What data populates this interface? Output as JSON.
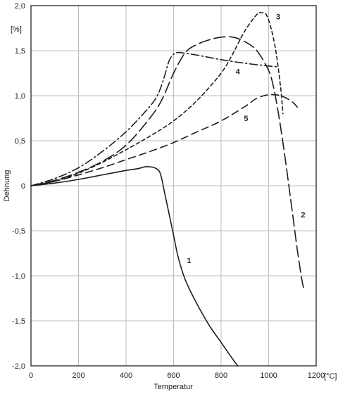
{
  "chart_data": {
    "type": "line",
    "xlabel": "Temperatur",
    "ylabel": "Dehnung",
    "x_unit": "[°C]",
    "y_unit": "[%]",
    "xlim": [
      0,
      1200
    ],
    "ylim": [
      -2.0,
      2.0
    ],
    "x_ticks": [
      0,
      200,
      400,
      600,
      800,
      1000,
      1200
    ],
    "x_tick_labels": [
      "0",
      "200",
      "400",
      "600",
      "800",
      "1000",
      "1200"
    ],
    "y_ticks": [
      2.0,
      1.5,
      1.0,
      0.5,
      0,
      -0.5,
      -1.0,
      -1.5,
      -2.0
    ],
    "y_tick_labels": [
      "2,0",
      "1,5",
      "1,0",
      "0,5",
      "0",
      "-0,5",
      "-1,0",
      "-1,5",
      "-2,0"
    ],
    "grid": true,
    "legend": "labels on curves",
    "series": [
      {
        "label": "1",
        "line_style": "solid",
        "label_at": [
          665,
          -0.83
        ],
        "x": [
          0,
          100,
          200,
          300,
          400,
          450,
          480,
          500,
          520,
          540,
          550,
          560,
          580,
          600,
          620,
          650,
          700,
          750,
          800,
          850,
          870
        ],
        "y": [
          0,
          0.03,
          0.07,
          0.12,
          0.17,
          0.19,
          0.21,
          0.21,
          0.2,
          0.16,
          0.08,
          -0.05,
          -0.3,
          -0.55,
          -0.8,
          -1.05,
          -1.32,
          -1.55,
          -1.74,
          -1.93,
          -2.0
        ]
      },
      {
        "label": "2",
        "line_style": "long-dash",
        "label_at": [
          1145,
          -0.32
        ],
        "x": [
          0,
          100,
          200,
          300,
          400,
          500,
          550,
          600,
          650,
          700,
          750,
          800,
          850,
          900,
          950,
          1000,
          1020,
          1040,
          1060,
          1080,
          1100,
          1120,
          1140,
          1150
        ],
        "y": [
          0,
          0.06,
          0.15,
          0.27,
          0.45,
          0.75,
          0.95,
          1.25,
          1.48,
          1.57,
          1.62,
          1.65,
          1.65,
          1.6,
          1.5,
          1.28,
          1.1,
          0.82,
          0.48,
          0.1,
          -0.3,
          -0.7,
          -1.05,
          -1.15
        ]
      },
      {
        "label": "3",
        "line_style": "short-dash",
        "label_at": [
          1040,
          1.88
        ],
        "x": [
          0,
          100,
          200,
          300,
          400,
          500,
          600,
          700,
          800,
          850,
          900,
          950,
          970,
          990,
          1010,
          1030,
          1050,
          1060
        ],
        "y": [
          0,
          0.05,
          0.14,
          0.26,
          0.4,
          0.55,
          0.72,
          0.95,
          1.25,
          1.47,
          1.72,
          1.9,
          1.92,
          1.9,
          1.75,
          1.5,
          1.1,
          0.8
        ]
      },
      {
        "label": "4",
        "line_style": "dash-dot",
        "label_at": [
          870,
          1.27
        ],
        "x": [
          0,
          100,
          200,
          300,
          400,
          480,
          520,
          540,
          560,
          580,
          600,
          620,
          650,
          700,
          800,
          900,
          1000,
          1040
        ],
        "y": [
          0,
          0.08,
          0.2,
          0.38,
          0.6,
          0.82,
          0.95,
          1.05,
          1.2,
          1.38,
          1.46,
          1.48,
          1.47,
          1.45,
          1.4,
          1.36,
          1.33,
          1.32
        ]
      },
      {
        "label": "5",
        "line_style": "medium-dash",
        "label_at": [
          905,
          0.75
        ],
        "x": [
          0,
          100,
          200,
          300,
          400,
          500,
          600,
          700,
          800,
          900,
          950,
          1000,
          1050,
          1100,
          1130
        ],
        "y": [
          0,
          0.05,
          0.12,
          0.2,
          0.29,
          0.38,
          0.48,
          0.6,
          0.72,
          0.88,
          0.97,
          1.01,
          1.0,
          0.93,
          0.84
        ]
      }
    ]
  }
}
